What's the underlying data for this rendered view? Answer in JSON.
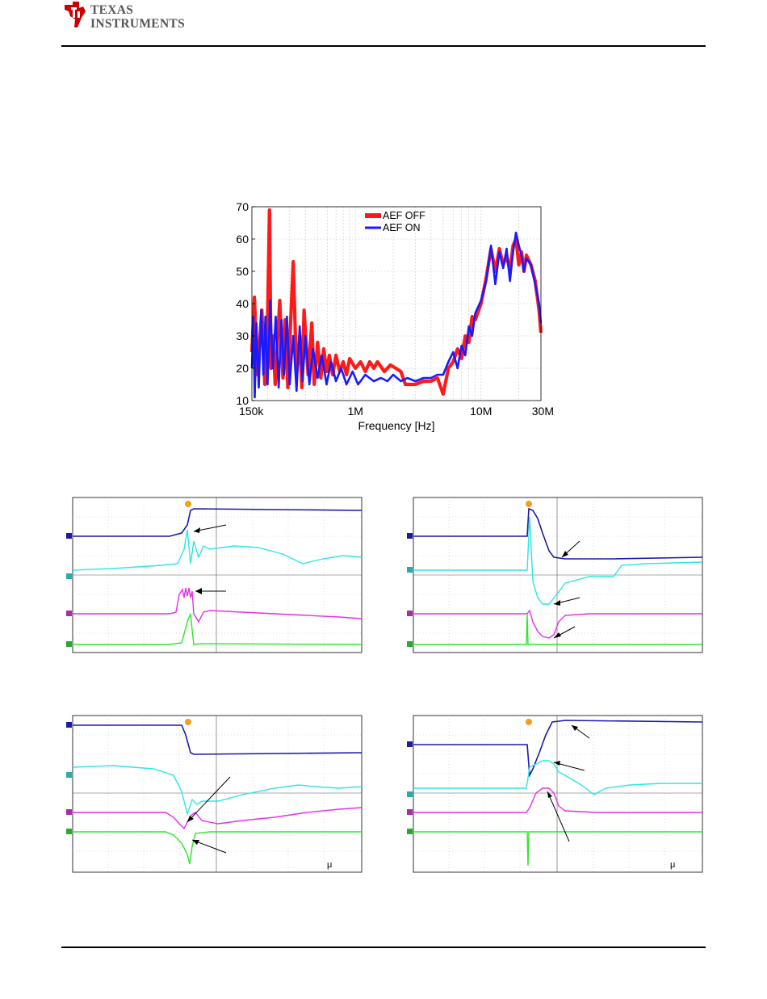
{
  "header": {
    "logo_line1": "TEXAS",
    "logo_line2": "INSTRUMENTS"
  },
  "colors": {
    "aef_off": "#ff1a1a",
    "aef_on": "#1a1aff",
    "scope_blue": "#1a1aa6",
    "scope_cyan": "#2ee6e6",
    "scope_magenta": "#e62ee6",
    "scope_green": "#2ee62e"
  },
  "chart_data": {
    "type": "line",
    "title": "",
    "xlabel": "Frequency [Hz]",
    "ylabel": "",
    "x_scale": "log",
    "xlim": [
      150000,
      30000000
    ],
    "ylim": [
      10,
      70
    ],
    "x_ticks": [
      {
        "value": 150000,
        "label": "150k"
      },
      {
        "value": 1000000,
        "label": "1M"
      },
      {
        "value": 10000000,
        "label": "10M"
      },
      {
        "value": 30000000,
        "label": "30M"
      }
    ],
    "y_ticks": [
      10,
      20,
      30,
      40,
      50,
      60,
      70
    ],
    "grid": true,
    "legend_position": "top-center",
    "series": [
      {
        "name": "AEF OFF",
        "color": "#ff1a1a",
        "x": [
          150000,
          157000,
          166000,
          180000,
          190000,
          200000,
          207000,
          213000,
          220000,
          230000,
          250000,
          265000,
          275000,
          290000,
          320000,
          340000,
          360000,
          375000,
          390000,
          420000,
          450000,
          470000,
          500000,
          530000,
          560000,
          590000,
          620000,
          660000,
          700000,
          750000,
          800000,
          850000,
          900000,
          1000000,
          1100000,
          1200000,
          1300000,
          1400000,
          1500000,
          1700000,
          1900000,
          2100000,
          2300000,
          2500000,
          3000000,
          3500000,
          4000000,
          4500000,
          5000000,
          5500000,
          6000000,
          6500000,
          7000000,
          7500000,
          8000000,
          8500000,
          9000000,
          10000000,
          11000000,
          12000000,
          13000000,
          14000000,
          15000000,
          16000000,
          17000000,
          18000000,
          19000000,
          20000000,
          21000000,
          22000000,
          23000000,
          25000000,
          27000000,
          29000000,
          30000000
        ],
        "y": [
          25,
          42,
          18,
          38,
          15,
          35,
          69,
          20,
          30,
          15,
          41,
          17,
          35,
          14,
          53,
          18,
          30,
          14,
          38,
          18,
          34,
          15,
          28,
          17,
          26,
          19,
          24,
          18,
          24,
          19,
          22,
          18,
          23,
          20,
          22,
          19,
          22,
          20,
          22,
          19,
          21,
          20,
          19,
          15,
          15,
          16,
          16,
          17,
          12,
          20,
          22,
          26,
          23,
          30,
          28,
          36,
          35,
          40,
          48,
          57,
          50,
          57,
          52,
          55,
          50,
          58,
          60,
          52,
          56,
          50,
          55,
          52,
          47,
          38,
          31
        ]
      },
      {
        "name": "AEF ON",
        "color": "#1a1aff",
        "x": [
          150000,
          154000,
          158000,
          163000,
          170000,
          178000,
          185000,
          192000,
          200000,
          210000,
          220000,
          232000,
          245000,
          258000,
          270000,
          285000,
          300000,
          320000,
          340000,
          360000,
          380000,
          400000,
          430000,
          460000,
          500000,
          540000,
          590000,
          640000,
          700000,
          770000,
          850000,
          950000,
          1050000,
          1200000,
          1400000,
          1600000,
          1800000,
          2000000,
          2300000,
          2600000,
          3000000,
          3500000,
          4000000,
          4500000,
          5000000,
          5500000,
          6000000,
          6500000,
          7000000,
          7500000,
          8000000,
          8500000,
          9000000,
          10000000,
          11000000,
          12000000,
          13000000,
          14000000,
          15000000,
          16000000,
          17000000,
          18000000,
          19000000,
          20000000,
          21000000,
          22000000,
          23000000,
          25000000,
          27000000,
          29000000,
          30000000
        ],
        "y": [
          20,
          36,
          11,
          34,
          14,
          38,
          18,
          36,
          15,
          41,
          20,
          36,
          14,
          35,
          18,
          36,
          15,
          30,
          13,
          33,
          16,
          30,
          15,
          26,
          17,
          24,
          15,
          22,
          16,
          20,
          15,
          19,
          15,
          18,
          16,
          17,
          16,
          18,
          16,
          17,
          16,
          17,
          17,
          18,
          18,
          22,
          25,
          20,
          27,
          24,
          33,
          30,
          37,
          41,
          47,
          58,
          46,
          56,
          51,
          57,
          47,
          56,
          62,
          58,
          55,
          50,
          54,
          52,
          46,
          40,
          34
        ]
      }
    ]
  },
  "scopes": [
    {
      "id": "top-left",
      "mu_label": ""
    },
    {
      "id": "top-right",
      "mu_label": ""
    },
    {
      "id": "bottom-left",
      "mu_label": "μ"
    },
    {
      "id": "bottom-right",
      "mu_label": "μ"
    }
  ]
}
